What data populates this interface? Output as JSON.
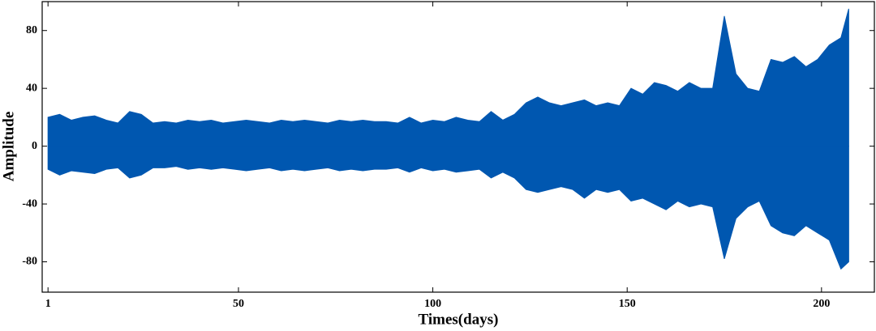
{
  "chart_data": {
    "type": "band",
    "x_label": "Times(days)",
    "y_label": "Amplitude",
    "color": "#0057b0",
    "x": [
      1,
      4,
      7,
      10,
      13,
      16,
      19,
      22,
      25,
      28,
      31,
      34,
      37,
      40,
      43,
      46,
      49,
      52,
      55,
      58,
      61,
      64,
      67,
      70,
      73,
      76,
      79,
      82,
      85,
      88,
      91,
      94,
      97,
      100,
      103,
      106,
      109,
      112,
      115,
      118,
      121,
      124,
      127,
      130,
      133,
      136,
      139,
      142,
      145,
      148,
      151,
      154,
      157,
      160,
      163,
      166,
      169,
      172,
      175,
      178,
      181,
      184,
      187,
      190,
      193,
      196,
      199,
      202,
      205,
      207
    ],
    "upper": [
      20,
      22,
      18,
      20,
      21,
      18,
      16,
      24,
      22,
      16,
      17,
      16,
      18,
      17,
      18,
      16,
      17,
      18,
      17,
      16,
      18,
      17,
      18,
      17,
      16,
      18,
      17,
      18,
      17,
      17,
      16,
      20,
      16,
      18,
      17,
      20,
      18,
      17,
      24,
      18,
      22,
      30,
      34,
      30,
      28,
      30,
      32,
      28,
      30,
      28,
      40,
      36,
      44,
      42,
      38,
      44,
      40,
      40,
      90,
      50,
      40,
      38,
      60,
      58,
      62,
      55,
      60,
      70,
      75,
      95
    ],
    "lower": [
      -16,
      -20,
      -17,
      -18,
      -19,
      -16,
      -15,
      -22,
      -20,
      -15,
      -15,
      -14,
      -16,
      -15,
      -16,
      -15,
      -16,
      -17,
      -16,
      -15,
      -17,
      -16,
      -17,
      -16,
      -15,
      -17,
      -16,
      -17,
      -16,
      -16,
      -15,
      -18,
      -15,
      -17,
      -16,
      -18,
      -17,
      -16,
      -22,
      -18,
      -22,
      -30,
      -32,
      -30,
      -28,
      -30,
      -36,
      -30,
      -32,
      -30,
      -38,
      -36,
      -40,
      -44,
      -38,
      -42,
      -40,
      -42,
      -78,
      -50,
      -42,
      -38,
      -55,
      -60,
      -62,
      -55,
      -60,
      -65,
      -85,
      -80
    ],
    "xlim": [
      -0.5,
      213.6
    ],
    "ylim": [
      -101,
      100
    ],
    "xticks": [
      1,
      50,
      100,
      150,
      200
    ],
    "yticks": [
      -80,
      -40,
      0,
      40,
      80
    ]
  }
}
